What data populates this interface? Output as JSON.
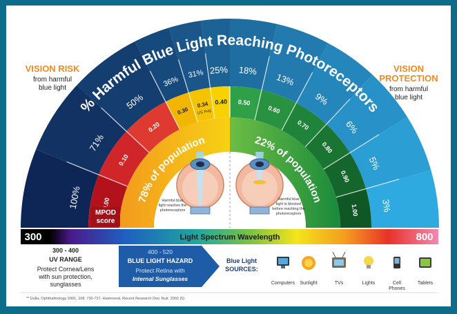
{
  "title": "% Harmful Blue Light Reaching Photoreceptors",
  "left_panel": {
    "heading": "VISION RISK",
    "text": [
      "from harmful",
      "blue light"
    ]
  },
  "right_panel": {
    "heading": [
      "VISION",
      "PROTECTION"
    ],
    "text": [
      "from harmful",
      "blue light"
    ]
  },
  "segments": [
    {
      "percent": "100%",
      "mpod": "0.00"
    },
    {
      "percent": "71%",
      "mpod": "0.10"
    },
    {
      "percent": "50%",
      "mpod": "0.20"
    },
    {
      "percent": "36%",
      "mpod": "0.30"
    },
    {
      "percent": "31%",
      "mpod": "0.34"
    },
    {
      "percent": "25%",
      "mpod": "0.40"
    },
    {
      "percent": "18%",
      "mpod": "0.50"
    },
    {
      "percent": "13%",
      "mpod": "0.60"
    },
    {
      "percent": "9%",
      "mpod": "0.70"
    },
    {
      "percent": "6%",
      "mpod": "0.80"
    },
    {
      "percent": "5%",
      "mpod": "0.90"
    },
    {
      "percent": "3%",
      "mpod": "1.00"
    }
  ],
  "us_avg": "US Avg",
  "mpod_label": [
    "MPOD",
    "score"
  ],
  "population": {
    "left": "78% of population",
    "right": "22% of population"
  },
  "eye_captions": {
    "left": [
      "Harmful blue",
      "light reaches the",
      "photoreceptors"
    ],
    "right": [
      "Harmful blue",
      "light is blocked",
      "before reaching the",
      "photoreceptors"
    ]
  },
  "spectrum": {
    "start": "300",
    "label": "Light Spectrum Wavelength",
    "end": "800"
  },
  "uv": {
    "range": "300 - 400",
    "title": "UV RANGE",
    "text": [
      "Protect Cornea/Lens",
      "with sun protection,",
      "sunglasses"
    ]
  },
  "hazard": {
    "range": "400 - 520",
    "title": "BLUE LIGHT HAZARD",
    "text": "Protect Retina with",
    "emphasis": "Internal Sunglasses"
  },
  "sources": {
    "label": [
      "Blue Light",
      "SOURCES:"
    ],
    "items": [
      [
        "Computers"
      ],
      [
        "Sunlight"
      ],
      [
        "TVs"
      ],
      [
        "Lights"
      ],
      [
        "Cell",
        "Phones"
      ],
      [
        "Tablets"
      ]
    ]
  },
  "footnote": "** Dulla, Ophthalmology 2001, 108: 730-737.  Hammond, Recent Research Dev. Nutr. 2002 (5)"
}
